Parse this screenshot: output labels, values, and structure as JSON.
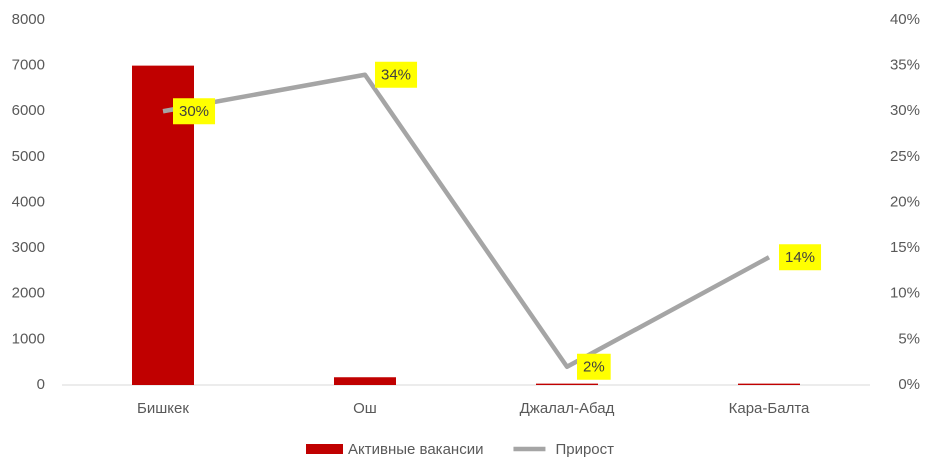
{
  "chart_data": {
    "type": "bar",
    "categories": [
      "Бишкек",
      "Ош",
      "Джалал-Абад",
      "Кара-Балта"
    ],
    "series": [
      {
        "name": "Активные вакансии",
        "type": "bar",
        "color": "#c00000",
        "values": [
          7000,
          170,
          30,
          30
        ]
      },
      {
        "name": "Прирост",
        "type": "line",
        "axis": "y2",
        "color": "#a5a5a5",
        "values": [
          30,
          34,
          2,
          14
        ],
        "value_labels": [
          "30%",
          "34%",
          "2%",
          "14%"
        ],
        "label_color": "#ffff00"
      }
    ],
    "ylim": [
      0,
      8000
    ],
    "yticks": [
      0,
      1000,
      2000,
      3000,
      4000,
      5000,
      6000,
      7000,
      8000
    ],
    "y2lim": [
      0,
      40
    ],
    "y2ticks": [
      {
        "value": 0,
        "label": "0%"
      },
      {
        "value": 5,
        "label": "5%"
      },
      {
        "value": 10,
        "label": "10%"
      },
      {
        "value": 15,
        "label": "15%"
      },
      {
        "value": 20,
        "label": "20%"
      },
      {
        "value": 25,
        "label": "25%"
      },
      {
        "value": 30,
        "label": "30%"
      },
      {
        "value": 35,
        "label": "35%"
      },
      {
        "value": 40,
        "label": "40%"
      }
    ],
    "grid": false,
    "legend": "bottom"
  }
}
